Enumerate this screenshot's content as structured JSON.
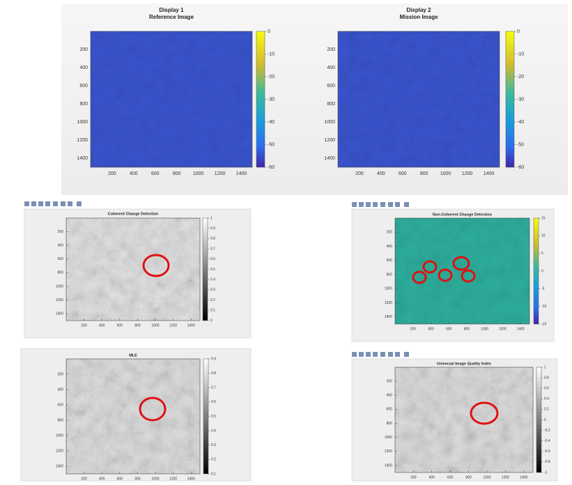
{
  "panels": [
    {
      "title": [
        "Display 1",
        "Reference Image"
      ],
      "x_ticks": [
        200,
        400,
        600,
        800,
        1000,
        1200,
        1400
      ],
      "y_ticks": [
        200,
        400,
        600,
        800,
        1000,
        1200,
        1400
      ],
      "colorbar_ticks": [
        0,
        -10,
        -20,
        -30,
        -40,
        -50,
        -60
      ]
    },
    {
      "title": [
        "Display 2",
        "Mission Image"
      ],
      "x_ticks": [
        200,
        400,
        600,
        800,
        1000,
        1200,
        1400
      ],
      "y_ticks": [
        200,
        400,
        600,
        800,
        1000,
        1200,
        1400
      ],
      "colorbar_ticks": [
        0,
        -10,
        -20,
        -30,
        -40,
        -50,
        -60
      ]
    },
    {
      "title": [
        "Coherent Change Detection"
      ],
      "x_ticks": [
        200,
        400,
        600,
        800,
        1000,
        1200,
        1400
      ],
      "y_ticks": [
        200,
        400,
        600,
        800,
        1000,
        1200,
        1400
      ],
      "colorbar_ticks": [
        1,
        0.9,
        0.8,
        0.7,
        0.6,
        0.5,
        0.4,
        0.3,
        0.2,
        0.1,
        0
      ]
    },
    {
      "title": [
        "Non-Coherent Change Detection"
      ],
      "x_ticks": [
        200,
        400,
        600,
        800,
        1000,
        1200,
        1400
      ],
      "y_ticks": [
        200,
        400,
        600,
        800,
        1000,
        1200,
        1400
      ],
      "colorbar_ticks": [
        15,
        10,
        5,
        0,
        -5,
        -10,
        -15
      ]
    },
    {
      "title": [
        "MLE"
      ],
      "x_ticks": [
        200,
        400,
        600,
        800,
        1000,
        1200,
        1400
      ],
      "y_ticks": [
        200,
        400,
        600,
        800,
        1000,
        1200,
        1400
      ],
      "colorbar_ticks": [
        0.9,
        0.8,
        0.7,
        0.6,
        0.5,
        0.4,
        0.3,
        0.2,
        0.1
      ]
    },
    {
      "title": [
        "Universal Image Quality Index"
      ],
      "x_ticks": [
        200,
        400,
        600,
        800,
        1000,
        1200,
        1400
      ],
      "y_ticks": [
        200,
        400,
        600,
        800,
        1000,
        1200,
        1400
      ],
      "colorbar_ticks": [
        1,
        0.8,
        0.6,
        0.4,
        0.2,
        0,
        -0.2,
        -0.4,
        -0.6,
        -0.8,
        -1
      ]
    }
  ]
}
